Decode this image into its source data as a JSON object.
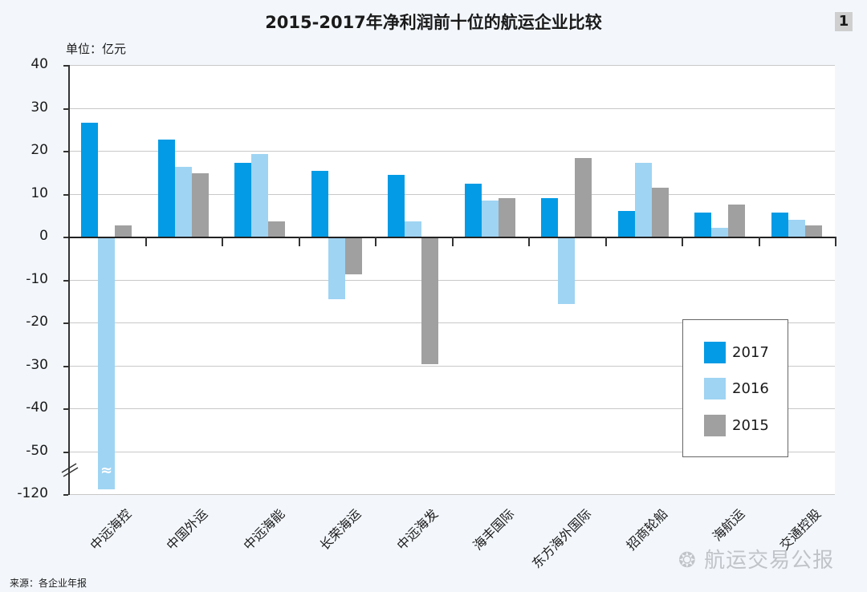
{
  "header": {
    "title": "2015-2017年净利润前十位的航运企业比较",
    "figure_number": "1",
    "unit": "单位：亿元"
  },
  "footer": {
    "source": "来源：各企业年报",
    "watermark": "航运交易公报"
  },
  "colors": {
    "2017": "#039be5",
    "2016": "#9fd4f3",
    "2015": "#a0a0a0",
    "plot_bg": "#ffffff",
    "page_bg": "#f3f7fc"
  },
  "chart_data": {
    "type": "bar",
    "title": "2015-2017年净利润前十位的航运企业比较",
    "xlabel": "",
    "ylabel": "单位：亿元",
    "ylim": [
      -120,
      40
    ],
    "y_axis_break": "between -50 and -120",
    "yticks": [
      "40",
      "30",
      "20",
      "10",
      "0",
      "-10",
      "-20",
      "-30",
      "-40",
      "-50",
      "-120"
    ],
    "grid": true,
    "legend_position": "lower right inside plot",
    "categories": [
      "中远海控",
      "中国外运",
      "中远海能",
      "长荣海运",
      "中远海发",
      "海丰国际",
      "东方海外国际",
      "招商轮船",
      "海航运",
      "交通控股"
    ],
    "series": [
      {
        "name": "2017",
        "values": [
          26.5,
          22.6,
          17.2,
          15.3,
          14.4,
          12.3,
          9.0,
          6.0,
          5.6,
          5.6
        ]
      },
      {
        "name": "2016",
        "values": [
          -118,
          16.3,
          19.3,
          -14.4,
          3.6,
          8.4,
          -15.5,
          17.2,
          2.1,
          4.0
        ]
      },
      {
        "name": "2015",
        "values": [
          2.6,
          14.8,
          3.6,
          -8.6,
          -29.5,
          9.0,
          18.3,
          11.4,
          7.5,
          2.6
        ]
      }
    ]
  },
  "legend": {
    "items": [
      {
        "label": "2017"
      },
      {
        "label": "2016"
      },
      {
        "label": "2015"
      }
    ]
  }
}
